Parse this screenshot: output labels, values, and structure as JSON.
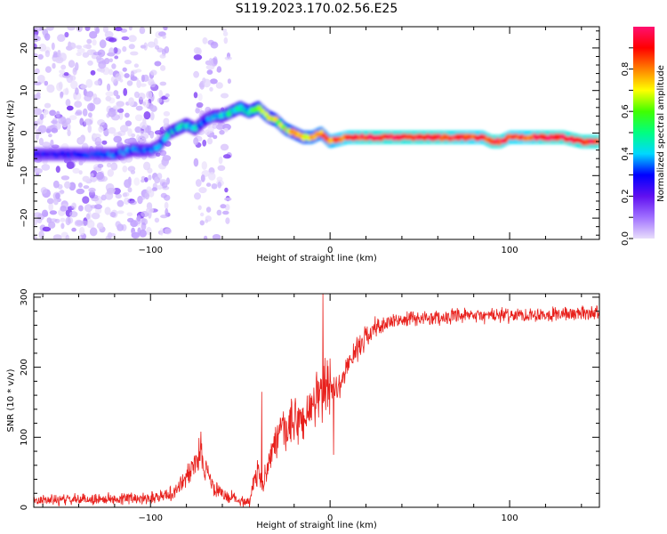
{
  "figure": {
    "title": "S119.2023.170.02.56.E25"
  },
  "chart_data": [
    {
      "type": "heatmap",
      "xlabel": "Height of straight line (km)",
      "ylabel": "Frequency (Hz)",
      "xlim": [
        -165,
        150
      ],
      "ylim": [
        -25,
        25
      ],
      "xticks": [
        -100,
        0,
        100
      ],
      "yticks": [
        -20,
        -10,
        0,
        10,
        20
      ],
      "colorbar": {
        "label": "Normalized spectral amplitude",
        "range": [
          0,
          1
        ],
        "ticks": [
          "0.0",
          "0.2",
          "0.4",
          "0.6",
          "0.8"
        ],
        "colormap": [
          "#e8ddfb",
          "#a070ff",
          "#6010f0",
          "#0000ff",
          "#00d8ff",
          "#00ff80",
          "#40ff00",
          "#ffff00",
          "#ff8000",
          "#ff0000",
          "#ff1070"
        ]
      },
      "ridge": {
        "x": [
          -165,
          -140,
          -120,
          -110,
          -100,
          -95,
          -90,
          -80,
          -75,
          -70,
          -65,
          -60,
          -55,
          -50,
          -45,
          -40,
          -35,
          -30,
          -25,
          -20,
          -15,
          -10,
          -5,
          0,
          10,
          20,
          40,
          60,
          80,
          85,
          90,
          95,
          100,
          110,
          120,
          130,
          140,
          150
        ],
        "y": [
          -5,
          -5,
          -5,
          -4,
          -4,
          -3,
          0,
          2,
          1,
          3,
          4,
          4,
          5,
          6,
          5,
          6,
          4,
          3,
          1,
          0,
          -1,
          -1,
          0,
          -2,
          -1,
          -1,
          -1,
          -1,
          -1,
          -1,
          -2,
          -2,
          -1,
          -1,
          -1,
          -1,
          -2,
          -2
        ],
        "amplitude": [
          0.3,
          0.3,
          0.35,
          0.4,
          0.35,
          0.4,
          0.45,
          0.5,
          0.45,
          0.4,
          0.4,
          0.45,
          0.5,
          0.55,
          0.55,
          0.6,
          0.65,
          0.7,
          0.75,
          0.75,
          0.75,
          0.8,
          0.8,
          0.85,
          0.9,
          0.95,
          0.95,
          0.95,
          0.9,
          0.9,
          0.95,
          0.95,
          0.9,
          0.9,
          0.95,
          0.95,
          0.95,
          0.95
        ]
      }
    },
    {
      "type": "line",
      "xlabel": "Height of straight line (km)",
      "ylabel": "SNR (10 * v/v)",
      "xlim": [
        -165,
        150
      ],
      "ylim": [
        0,
        305
      ],
      "xticks": [
        -100,
        0,
        100
      ],
      "yticks": [
        0,
        100,
        200,
        300
      ],
      "color": "#e8201c",
      "envelope": {
        "x": [
          -165,
          -120,
          -100,
          -90,
          -85,
          -80,
          -75,
          -72,
          -70,
          -67,
          -65,
          -60,
          -55,
          -50,
          -45,
          -42,
          -40,
          -38,
          -35,
          -30,
          -25,
          -20,
          -15,
          -10,
          -5,
          0,
          5,
          10,
          15,
          20,
          25,
          30,
          40,
          50,
          60,
          70,
          80,
          90,
          100,
          110,
          120,
          130,
          140,
          150
        ],
        "y": [
          10,
          12,
          14,
          18,
          25,
          45,
          60,
          80,
          60,
          40,
          28,
          18,
          14,
          10,
          8,
          40,
          50,
          30,
          60,
          95,
          110,
          120,
          125,
          140,
          165,
          175,
          170,
          205,
          225,
          245,
          255,
          262,
          267,
          270,
          271,
          272,
          273,
          274,
          274,
          275,
          276,
          276,
          277,
          278
        ]
      },
      "spikes": [
        {
          "x": -72,
          "y": 108
        },
        {
          "x": -38,
          "y": 165
        },
        {
          "x": -4,
          "y": 305
        },
        {
          "x": 2,
          "y": 250
        },
        {
          "x": 2,
          "y": 75
        }
      ]
    }
  ]
}
